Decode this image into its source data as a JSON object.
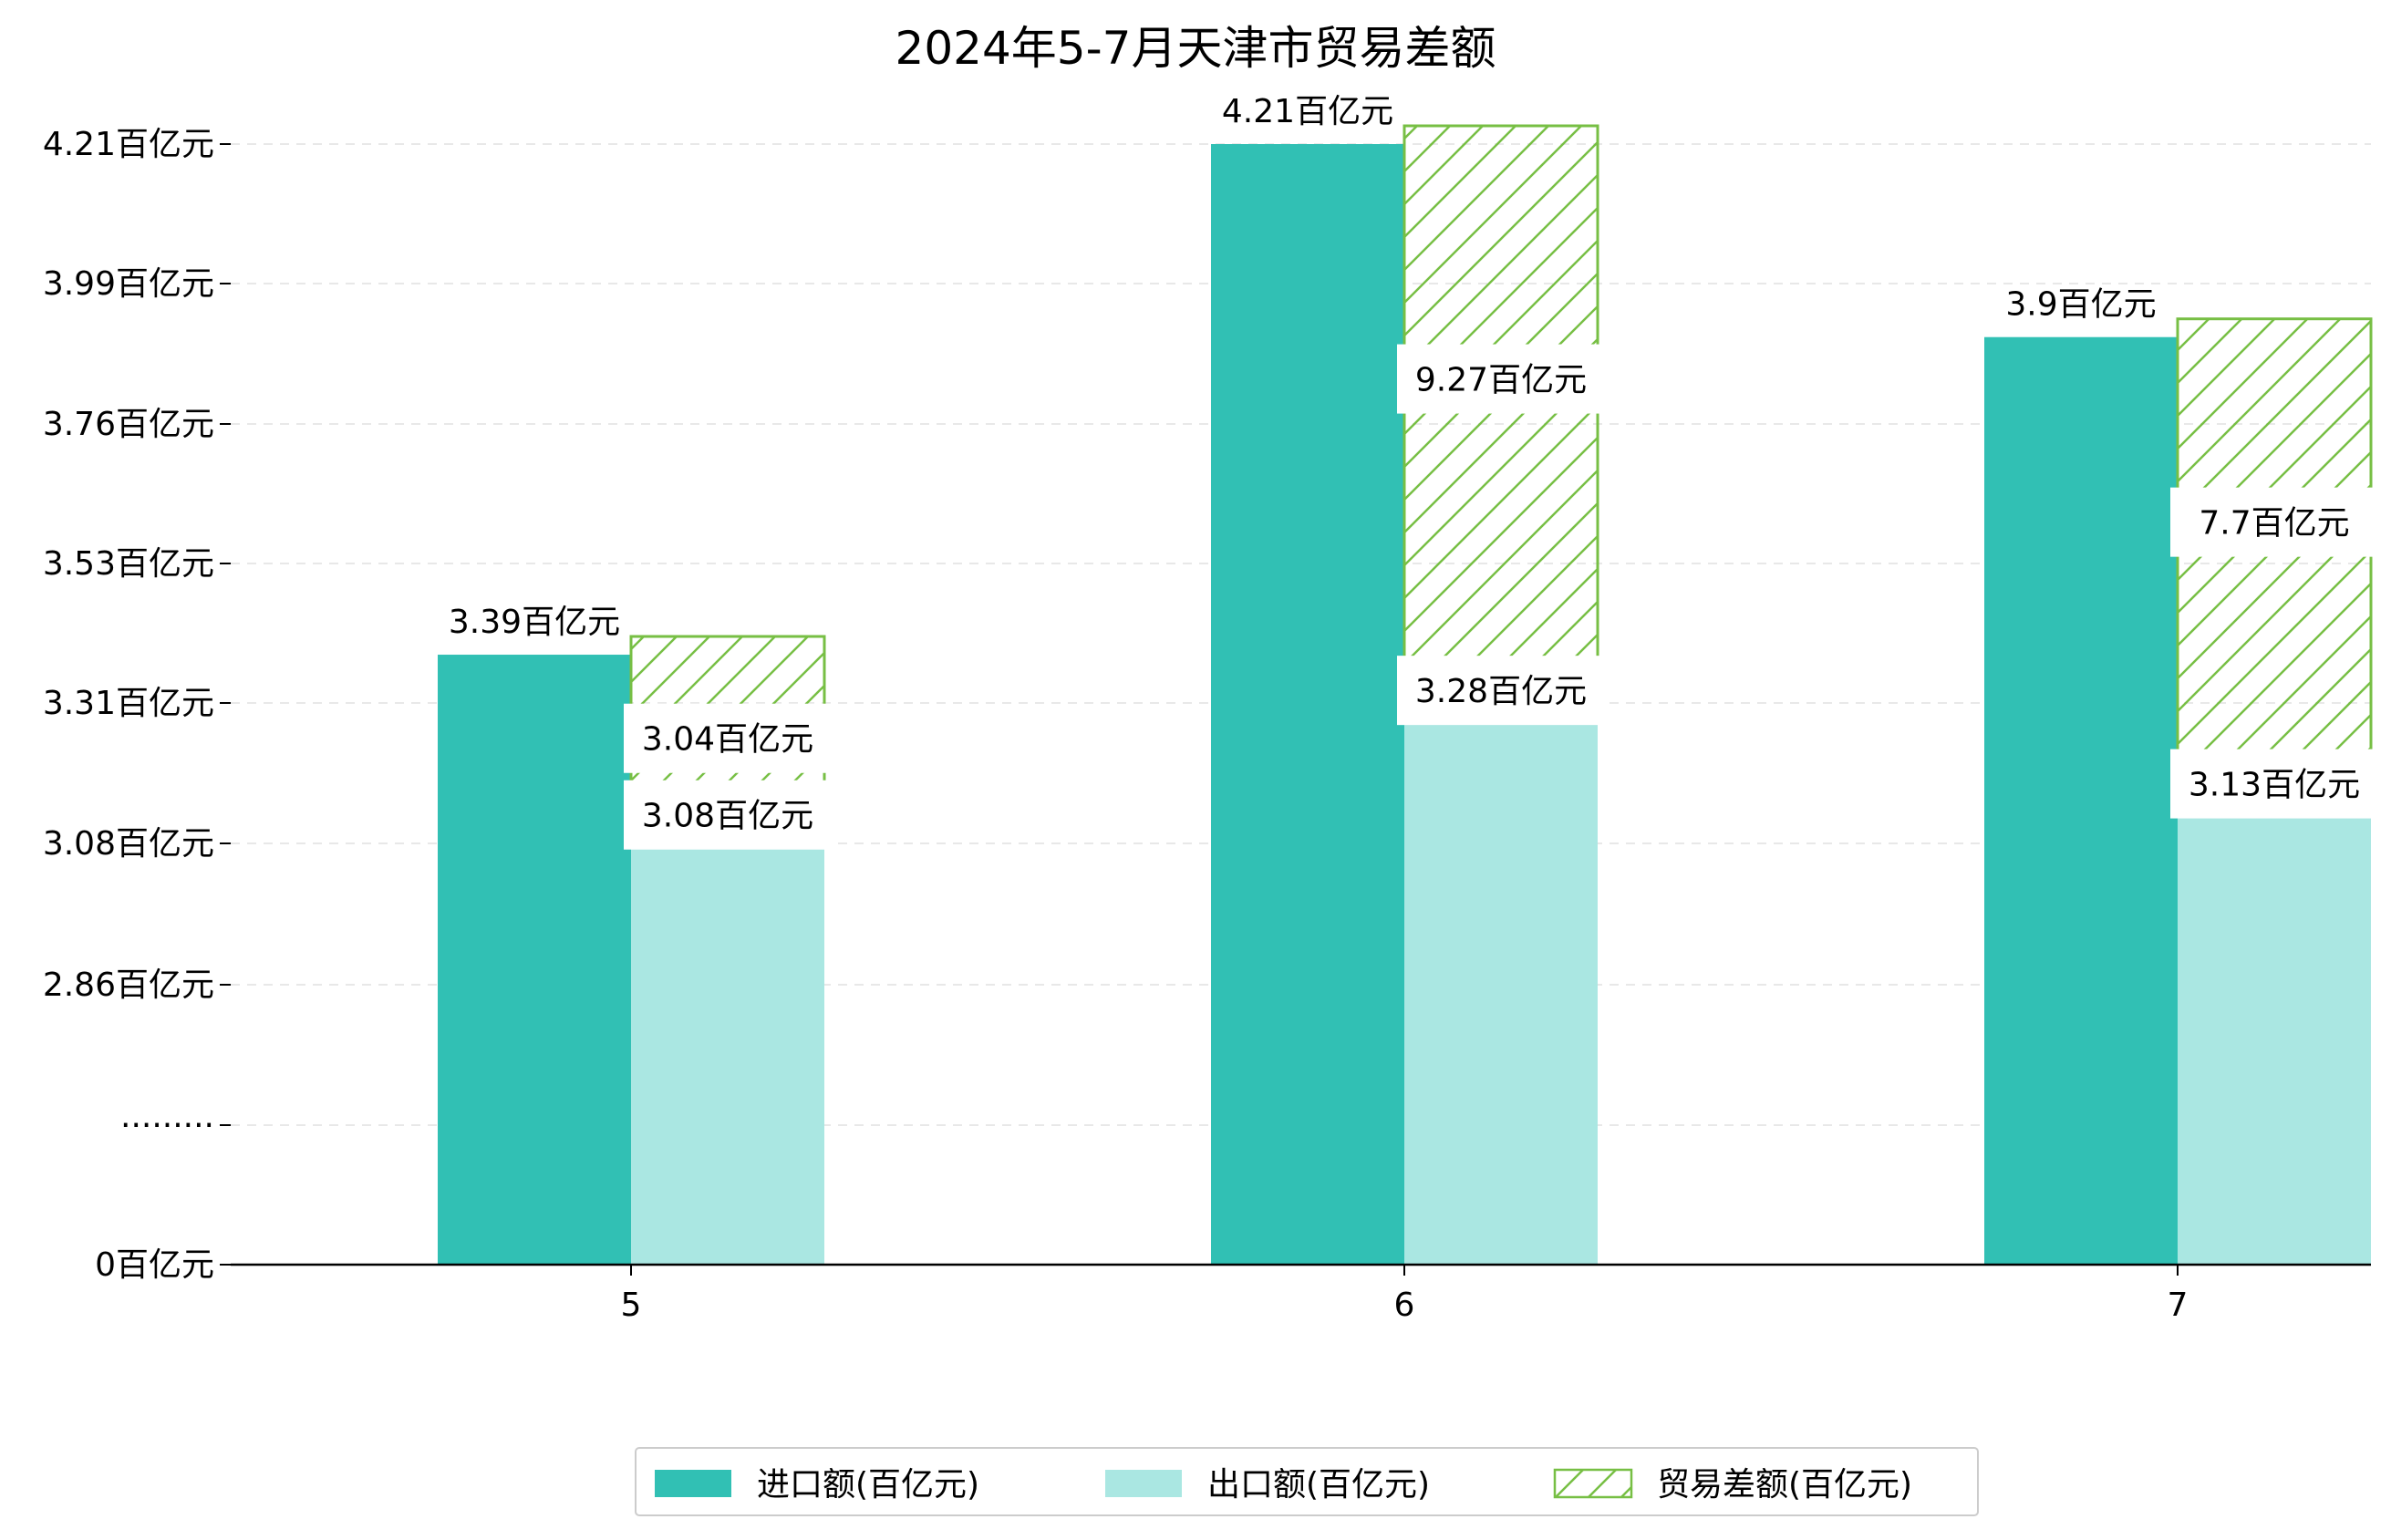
{
  "chart_data": {
    "type": "bar",
    "title": "2024年5-7月天津市贸易差额",
    "categories": [
      "5",
      "6",
      "7"
    ],
    "y_tick_labels": [
      "0百亿元",
      "·········",
      "2.86百亿元",
      "3.08百亿元",
      "3.31百亿元",
      "3.53百亿元",
      "3.76百亿元",
      "3.99百亿元",
      "4.21百亿元"
    ],
    "series": [
      {
        "name": "进口额(百亿元)",
        "values": [
          3.39,
          4.21,
          3.9
        ],
        "value_labels": [
          "3.39百亿元",
          "4.21百亿元",
          "3.9百亿元"
        ],
        "color": "#31c0b4"
      },
      {
        "name": "出口额(百亿元)",
        "values": [
          3.08,
          3.28,
          3.13
        ],
        "value_labels": [
          "3.08百亿元",
          "3.28百亿元",
          "3.13百亿元"
        ],
        "color": "#aae7e2"
      },
      {
        "name": "贸易差额(百亿元)",
        "values": [
          3.04,
          9.27,
          7.7
        ],
        "value_labels": [
          "3.04百亿元",
          "9.27百亿元",
          "7.7百亿元"
        ],
        "color": "#77bf44",
        "pattern": "hatch"
      }
    ],
    "grid": true,
    "legend_position": "bottom-center",
    "axis_break": true
  }
}
